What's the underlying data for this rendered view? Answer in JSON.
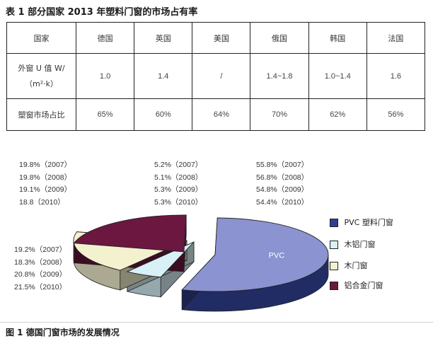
{
  "table_title": "表 1 部分国家 2013 年塑料门窗的市场占有率",
  "table": {
    "header": [
      "国家",
      "德国",
      "英国",
      "美国",
      "俄国",
      "韩国",
      "法国"
    ],
    "u_value_label_line1": "外窗 U 值 W/",
    "u_value_label_line2": "（m²·k）",
    "u_values": [
      "1.0",
      "1.4",
      "/",
      "1.4~1.8",
      "1.0~1.4",
      "1.6"
    ],
    "share_label": "塑窗市场占比",
    "shares": [
      "65%",
      "60%",
      "64%",
      "70%",
      "62%",
      "56%"
    ]
  },
  "chart_data": {
    "type": "pie",
    "title": "德国门窗市场的发展情况",
    "slices": [
      {
        "label": "PVC 塑料门窗",
        "color": "#2f3f8f",
        "values": {
          "2007": 55.8,
          "2008": 56.8,
          "2009": 54.8,
          "2010": 54.4
        }
      },
      {
        "label": "木铝门窗",
        "color": "#d8f0f6",
        "values": {
          "2007": 5.2,
          "2008": 5.1,
          "2009": 5.3,
          "2010": 5.3
        }
      },
      {
        "label": "木门窗",
        "color": "#f4f1cf",
        "values": {
          "2007": 19.8,
          "2008": 19.8,
          "2009": 19.1,
          "2010": 18.8
        }
      },
      {
        "label": "铝合金门窗",
        "color": "#6b1740",
        "values": {
          "2007": 19.2,
          "2008": 18.3,
          "2009": 20.8,
          "2010": 21.5
        }
      }
    ],
    "in_chart_label": "PVC",
    "stat_lines": {
      "wood": [
        "19.8%（2007）",
        "19.8%（2008）",
        "19.1%（2009）",
        "18.8（2010）"
      ],
      "wood_aluminum": [
        "5.2%（2007）",
        "5.1%（2008）",
        "5.3%（2009）",
        "5.3%（2010）"
      ],
      "pvc": [
        "55.8%（2007）",
        "56.8%（2008）",
        "54.8%（2009）",
        "54.4%（2010）"
      ],
      "aluminum": [
        "19.2%（2007）",
        "18.3%（2008）",
        "20.8%（2009）",
        "21.5%（2010）"
      ]
    }
  },
  "figure_caption": "图 1  德国门窗市场的发展情况"
}
